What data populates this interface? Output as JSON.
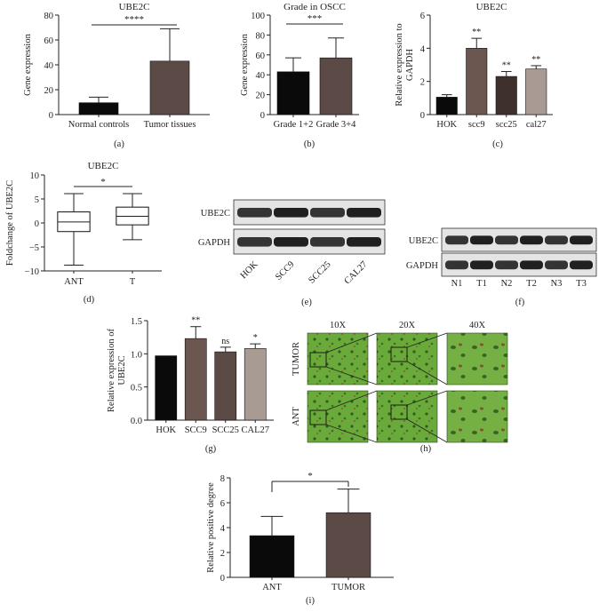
{
  "figure": {
    "colors": {
      "black": "#0a0a0a",
      "darkbrown": "#5b4a46",
      "medbrown": "#6b5650",
      "lightbrown": "#a99a93",
      "green": "#6aaa3a",
      "axis": "#222222"
    },
    "panel_letters": [
      "(a)",
      "(b)",
      "(c)",
      "(d)",
      "(e)",
      "(f)",
      "(g)",
      "(h)",
      "(i)"
    ],
    "blot_e": {
      "rows": [
        "UBE2C",
        "GAPDH"
      ],
      "lanes": [
        "HOK",
        "SCC9",
        "SCC25",
        "CAL27"
      ]
    },
    "blot_f": {
      "rows": [
        "UBE2C",
        "GAPDH"
      ],
      "lanes": [
        "N1",
        "T1",
        "N2",
        "T2",
        "N3",
        "T3"
      ]
    },
    "micrographs_h": {
      "columns": [
        "10X",
        "20X",
        "40X"
      ],
      "rows": [
        "TUMOR",
        "ANT"
      ]
    }
  },
  "chart_data": [
    {
      "id": "a",
      "type": "bar",
      "title": "UBE2C",
      "ylabel": "Gene expression",
      "ylim": [
        0,
        80
      ],
      "yticks": [
        "0",
        "20",
        "40",
        "60",
        "80"
      ],
      "categories": [
        "Normal controls",
        "Tumor tissues"
      ],
      "values": [
        9.5,
        43
      ],
      "errors": [
        4.5,
        26
      ],
      "bar_colors": [
        "#0a0a0a",
        "#5b4a46"
      ],
      "significance": "****"
    },
    {
      "id": "b",
      "type": "bar",
      "title": "Grade in OSCC",
      "ylabel": "Gene expression",
      "ylim": [
        0,
        100
      ],
      "yticks": [
        "0",
        "20",
        "40",
        "60",
        "80",
        "100"
      ],
      "categories": [
        "Grade 1+2",
        "Grade 3+4"
      ],
      "values": [
        43,
        57
      ],
      "errors": [
        14,
        20
      ],
      "bar_colors": [
        "#0a0a0a",
        "#5b4a46"
      ],
      "significance": "***"
    },
    {
      "id": "c",
      "type": "bar",
      "title": "UBE2C",
      "ylabel": "Relative expression to GAPDH",
      "ylim": [
        0,
        6
      ],
      "yticks": [
        "0",
        "2",
        "4",
        "6"
      ],
      "categories": [
        "HOK",
        "scc9",
        "scc25",
        "cal27"
      ],
      "values": [
        1.05,
        4.0,
        2.3,
        2.75
      ],
      "errors": [
        0.15,
        0.6,
        0.3,
        0.2
      ],
      "bar_colors": [
        "#0a0a0a",
        "#6b5650",
        "#3d302d",
        "#a99a93"
      ],
      "bar_labels": [
        "",
        "**",
        "**",
        "**"
      ]
    },
    {
      "id": "d",
      "type": "box",
      "title": "UBE2C",
      "ylabel": "Foldchange of UBE2C",
      "ylim": [
        -10,
        10
      ],
      "yticks": [
        "−10",
        "−5",
        "0",
        "5",
        "10"
      ],
      "categories": [
        "ANT",
        "T"
      ],
      "boxes": [
        {
          "min": -8.8,
          "q1": -1.8,
          "median": 0.2,
          "q3": 2.3,
          "max": 6.1
        },
        {
          "min": -3.5,
          "q1": -0.4,
          "median": 1.4,
          "q3": 3.3,
          "max": 6.1
        }
      ],
      "significance": "*"
    },
    {
      "id": "g",
      "type": "bar",
      "title": "",
      "ylabel": "Relative expression of UBE2C",
      "ylim": [
        0,
        1.5
      ],
      "yticks": [
        "0.0",
        "0.5",
        "1.0",
        "1.5"
      ],
      "categories": [
        "HOK",
        "SCC9",
        "SCC25",
        "CAL27"
      ],
      "values": [
        0.97,
        1.23,
        1.03,
        1.08
      ],
      "errors": [
        0,
        0.18,
        0.07,
        0.07
      ],
      "bar_colors": [
        "#0a0a0a",
        "#6b5650",
        "#5b4a46",
        "#a99a93"
      ],
      "bar_labels": [
        "",
        "**",
        "ns",
        "*"
      ]
    },
    {
      "id": "i",
      "type": "bar",
      "title": "",
      "ylabel": "Relative positive degree",
      "ylim": [
        0,
        8
      ],
      "yticks": [
        "0",
        "2",
        "4",
        "6",
        "8"
      ],
      "categories": [
        "ANT",
        "TUMOR"
      ],
      "values": [
        3.35,
        5.2
      ],
      "errors": [
        1.55,
        1.9
      ],
      "bar_colors": [
        "#0a0a0a",
        "#5b4a46"
      ],
      "significance": "*"
    }
  ]
}
